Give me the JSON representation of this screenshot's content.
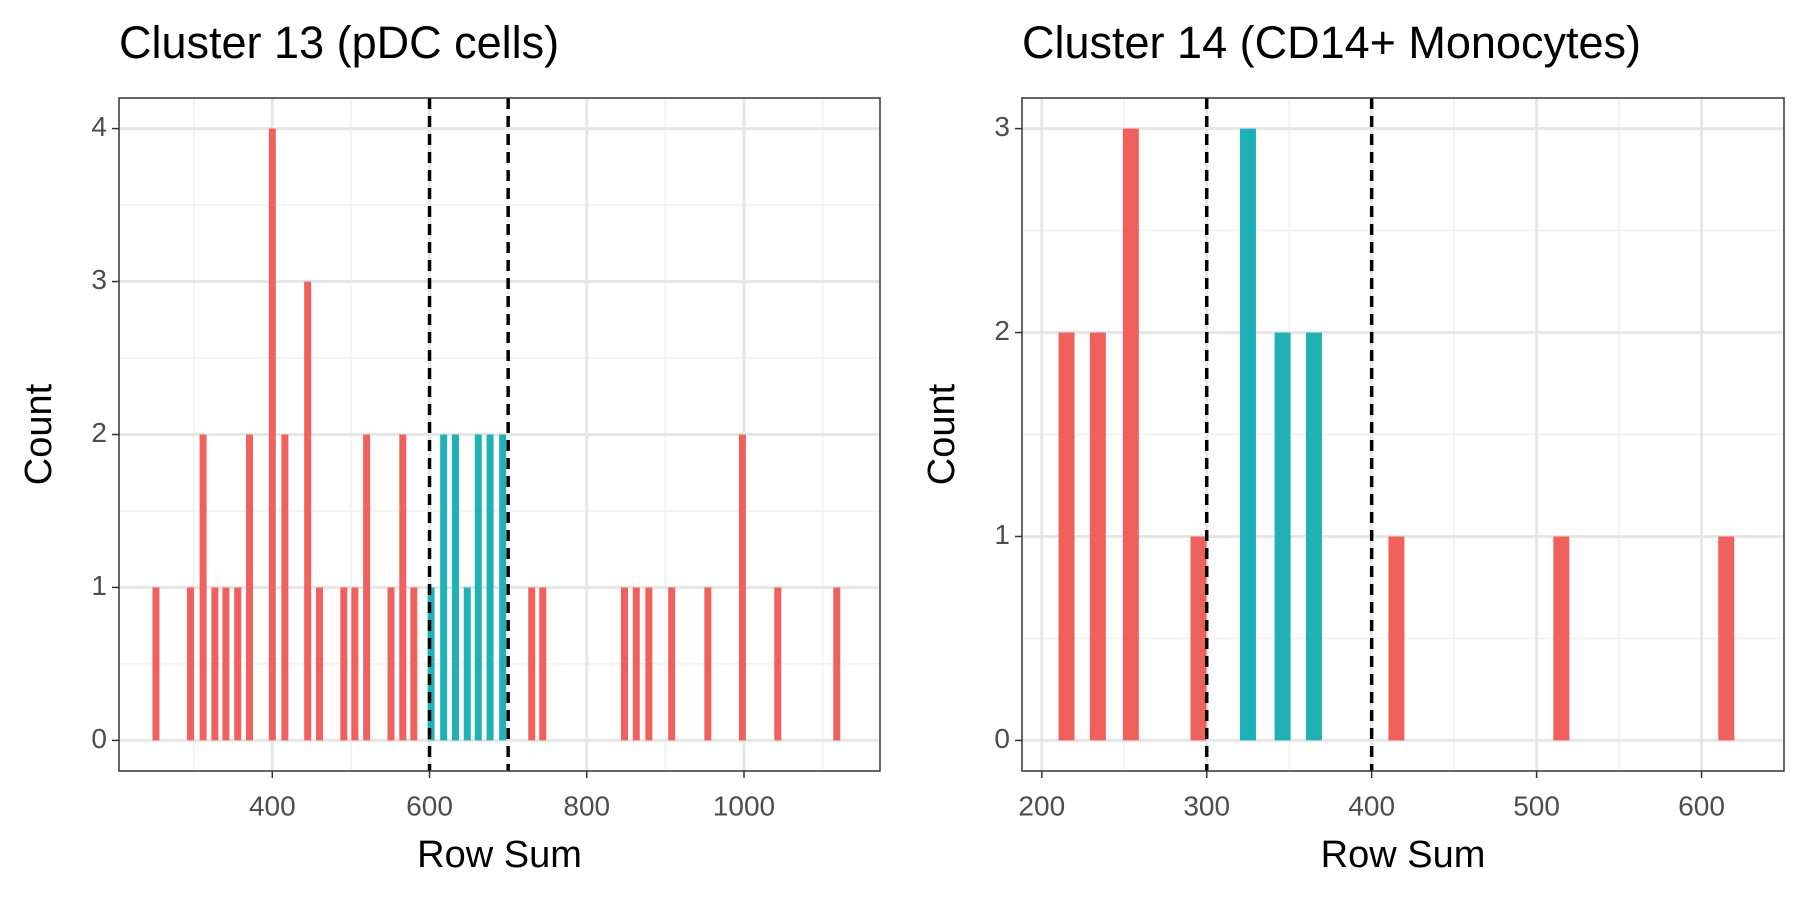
{
  "chart_data": [
    {
      "type": "bar",
      "title": "Cluster 13 (pDC cells)",
      "xlabel": "Row Sum",
      "ylabel": "Count",
      "x": [
        252,
        296,
        312,
        327,
        341,
        356,
        371,
        400,
        416,
        445,
        460,
        491,
        505,
        520,
        551,
        566,
        580,
        602,
        618,
        633,
        648,
        662,
        677,
        693,
        730,
        744,
        848,
        863,
        879,
        908,
        954,
        998,
        1043,
        1118
      ],
      "values": [
        1,
        1,
        2,
        1,
        1,
        1,
        2,
        4,
        2,
        3,
        1,
        1,
        1,
        2,
        1,
        2,
        1,
        1,
        2,
        2,
        1,
        2,
        2,
        2,
        1,
        1,
        1,
        1,
        1,
        1,
        1,
        2,
        1,
        1
      ],
      "color": "#F0605D",
      "highlight_color": "#1FB1B5",
      "vlines": [
        600,
        700
      ],
      "xlim": [
        205,
        1173
      ],
      "xticks": [
        400,
        600,
        800,
        1000
      ],
      "ylim": [
        -0.2,
        4.2
      ],
      "yticks": [
        0,
        1,
        2,
        3,
        4
      ],
      "grid": true
    },
    {
      "type": "bar",
      "title": "Cluster 14 (CD14+ Monocytes)",
      "xlabel": "Row Sum",
      "ylabel": "Count",
      "x": [
        215,
        234,
        254,
        295,
        325,
        346,
        365,
        415,
        515,
        615
      ],
      "values": [
        2,
        2,
        3,
        1,
        3,
        2,
        2,
        1,
        1,
        1
      ],
      "color": "#F0605D",
      "highlight_color": "#1FB1B5",
      "vlines": [
        300,
        400
      ],
      "xlim": [
        188,
        650
      ],
      "xticks": [
        200,
        300,
        400,
        500,
        600
      ],
      "ylim": [
        -0.15,
        3.15
      ],
      "yticks": [
        0,
        1,
        2,
        3
      ],
      "grid": true
    }
  ]
}
